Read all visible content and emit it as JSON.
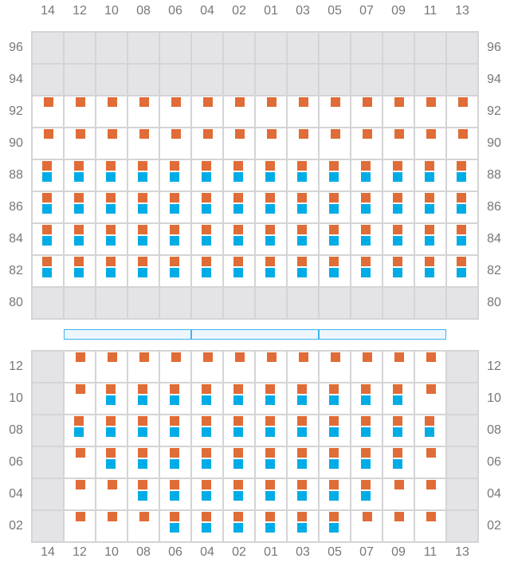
{
  "columns": [
    "14",
    "12",
    "10",
    "08",
    "06",
    "04",
    "02",
    "01",
    "03",
    "05",
    "07",
    "09",
    "11",
    "13"
  ],
  "colors": {
    "orange": "#e06c37",
    "blue": "#00ace6",
    "unavailable": "#e4e4e6",
    "bar_border": "#3bb5ef"
  },
  "legend_codes": {
    "G": "unavailable",
    "O": "orange only",
    "B": "orange and blue"
  },
  "upper_section": {
    "rows": [
      {
        "label": "96",
        "cells": "GGGGGGGGGGGGGG"
      },
      {
        "label": "94",
        "cells": "GGGGGGGGGGGGGG"
      },
      {
        "label": "92",
        "cells": "OOOOOOOOOOOOOO"
      },
      {
        "label": "90",
        "cells": "OOOOOOOOOOOOOO"
      },
      {
        "label": "88",
        "cells": "BBBBBBBBBBBBBB"
      },
      {
        "label": "86",
        "cells": "BBBBBBBBBBBBBB"
      },
      {
        "label": "84",
        "cells": "BBBBBBBBBBBBBB"
      },
      {
        "label": "82",
        "cells": "BBBBBBBBBBBBBB"
      },
      {
        "label": "80",
        "cells": "GGGGGGGGGGGGGG"
      }
    ]
  },
  "divider_segments": 3,
  "lower_section": {
    "rows": [
      {
        "label": "12",
        "cells": "GOOOOOOOOOOOOG"
      },
      {
        "label": "10",
        "cells": "GOBBBBBBBBBBOG"
      },
      {
        "label": "08",
        "cells": "GBBBBBBBBBBBBG"
      },
      {
        "label": "06",
        "cells": "GOBBBBBBBBBBOG"
      },
      {
        "label": "04",
        "cells": "GOOBBBBBBBBOOG"
      },
      {
        "label": "02",
        "cells": "GOOOBBBBBBOOOG"
      }
    ]
  }
}
